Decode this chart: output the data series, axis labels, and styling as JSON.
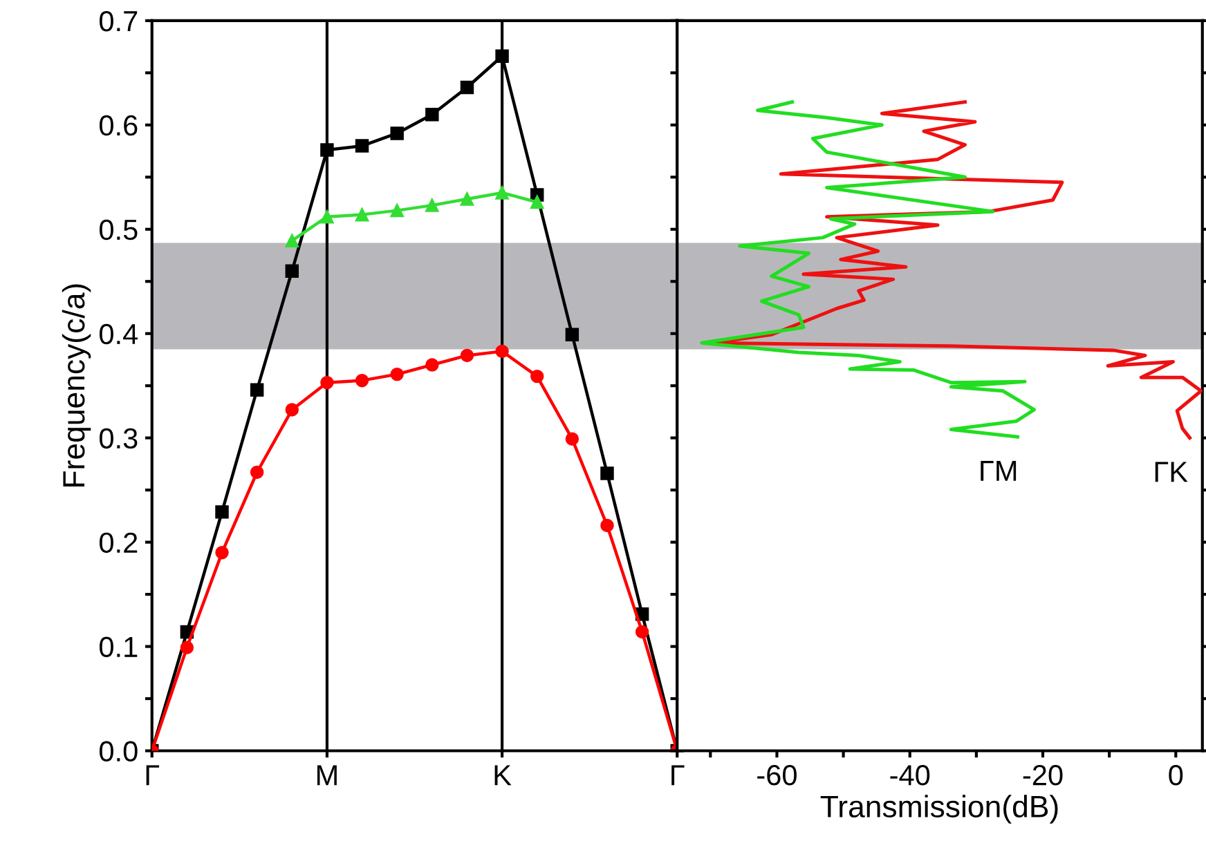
{
  "chart_data": [
    {
      "type": "line",
      "ylabel": "Frequency(c/a)",
      "categories": [
        "Γ",
        null,
        null,
        null,
        null,
        "M",
        null,
        null,
        null,
        null,
        "K",
        null,
        null,
        null,
        null,
        "Γ"
      ],
      "ylim": [
        0,
        0.7
      ],
      "yticks": [
        {
          "value": 0,
          "label": "0.0"
        },
        {
          "value": 0.05,
          "label": null
        },
        {
          "value": 0.1,
          "label": "0.1"
        },
        {
          "value": 0.15,
          "label": null
        },
        {
          "value": 0.2,
          "label": "0.2"
        },
        {
          "value": 0.25,
          "label": null
        },
        {
          "value": 0.3,
          "label": "0.3"
        },
        {
          "value": 0.35,
          "label": null
        },
        {
          "value": 0.4,
          "label": "0.4"
        },
        {
          "value": 0.45,
          "label": null
        },
        {
          "value": 0.5,
          "label": "0.5"
        },
        {
          "value": 0.55,
          "label": null
        },
        {
          "value": 0.6,
          "label": "0.6"
        },
        {
          "value": 0.65,
          "label": null
        },
        {
          "value": 0.7,
          "label": "0.7"
        }
      ],
      "grid": false,
      "legend": false,
      "line_style": "solid",
      "series": [
        {
          "color": "#000000",
          "marker": "square",
          "values": [
            0,
            0.114,
            0.229,
            0.346,
            0.46,
            0.576,
            0.58,
            0.592,
            0.61,
            0.636,
            0.666,
            0.533,
            0.399,
            0.266,
            0.131,
            0
          ]
        },
        {
          "color": "#ff0000",
          "marker": "circle",
          "values": [
            0,
            0.099,
            0.19,
            0.267,
            0.327,
            0.353,
            0.355,
            0.361,
            0.37,
            0.379,
            0.383,
            0.359,
            0.299,
            0.216,
            0.114,
            0
          ]
        },
        {
          "color": "#33dd33",
          "marker": "triangle",
          "values": [
            null,
            null,
            null,
            null,
            0.489,
            0.512,
            0.514,
            0.518,
            0.523,
            0.529,
            0.535,
            0.526,
            null,
            null,
            null,
            null
          ]
        }
      ],
      "ref_lines": [
        {
          "axis": "x",
          "value": "M",
          "color": "#000000"
        },
        {
          "axis": "x",
          "value": "K",
          "color": "#000000"
        }
      ],
      "bands": [
        {
          "axis": "y",
          "from": 0.385,
          "to": 0.487,
          "color": "#b8b8bc"
        }
      ]
    },
    {
      "type": "line",
      "xlabel": "Transmission(dB)",
      "tick_labels": "x",
      "xlim": [
        -75,
        4
      ],
      "xticks": [
        {
          "value": -70,
          "label": null
        },
        -60,
        {
          "value": -50,
          "label": null
        },
        -40,
        {
          "value": -30,
          "label": null
        },
        -20,
        {
          "value": -10,
          "label": null
        },
        0
      ],
      "ylim": [
        0,
        0.7
      ],
      "yticks": [
        {
          "value": 0,
          "label": null
        },
        {
          "value": 0.05,
          "label": null
        },
        {
          "value": 0.1,
          "label": null
        },
        {
          "value": 0.15,
          "label": null
        },
        {
          "value": 0.2,
          "label": null
        },
        {
          "value": 0.25,
          "label": null
        },
        {
          "value": 0.3,
          "label": null
        },
        {
          "value": 0.35,
          "label": null
        },
        {
          "value": 0.4,
          "label": null
        },
        {
          "value": 0.45,
          "label": null
        },
        {
          "value": 0.5,
          "label": null
        },
        {
          "value": 0.55,
          "label": null
        },
        {
          "value": 0.6,
          "label": null
        },
        {
          "value": 0.65,
          "label": null
        },
        {
          "value": 0.7,
          "label": null
        }
      ],
      "grid": false,
      "legend": false,
      "line_style": "solid",
      "series": [
        {
          "name": "ΓK",
          "color": "#ee1111",
          "x": [
            -31.7,
            -44.2,
            -30.2,
            -37.9,
            -31.7,
            -35.8,
            -59.4,
            -17.1,
            -18.5,
            -28.1,
            -52.5,
            -35.8,
            -51.0,
            -44.8,
            -50.4,
            -40.6,
            -56.0,
            -42.5,
            -47.7,
            -46.9,
            -51.0,
            -60.8,
            -69.8,
            -33.8,
            -9.4,
            -4.6,
            -10.2,
            -0.4,
            -5.2,
            1.0,
            3.8,
            0.2,
            1.0,
            2.1
          ],
          "values": [
            0.622,
            0.611,
            0.603,
            0.594,
            0.581,
            0.567,
            0.553,
            0.545,
            0.528,
            0.517,
            0.512,
            0.504,
            0.492,
            0.479,
            0.471,
            0.464,
            0.457,
            0.452,
            0.441,
            0.432,
            0.424,
            0.399,
            0.391,
            0.388,
            0.384,
            0.379,
            0.369,
            0.373,
            0.358,
            0.358,
            0.345,
            0.326,
            0.309,
            0.3
          ]
        },
        {
          "name": "ΓM",
          "color": "#22dd22",
          "x": [
            -57.7,
            -62.9,
            -52.5,
            -44.2,
            -54.6,
            -52.5,
            -31.7,
            -52.5,
            -27.5,
            -51.9,
            -48.3,
            -53.1,
            -65.6,
            -55.2,
            -60.8,
            -55.2,
            -62.3,
            -56.7,
            -56.0,
            -71.3,
            -56.7,
            -47.7,
            -41.5,
            -49.0,
            -39.4,
            -33.8,
            -22.7,
            -33.8,
            -26.0,
            -21.3,
            -24.0,
            -33.8,
            -23.8
          ],
          "values": [
            0.622,
            0.614,
            0.607,
            0.6,
            0.587,
            0.574,
            0.55,
            0.54,
            0.517,
            0.51,
            0.505,
            0.492,
            0.484,
            0.477,
            0.455,
            0.445,
            0.431,
            0.418,
            0.406,
            0.391,
            0.382,
            0.379,
            0.373,
            0.366,
            0.365,
            0.353,
            0.354,
            0.349,
            0.345,
            0.327,
            0.316,
            0.308,
            0.301
          ]
        }
      ],
      "bands": [
        {
          "axis": "y",
          "from": 0.385,
          "to": 0.487,
          "color": "#b8b8bc"
        }
      ]
    }
  ]
}
